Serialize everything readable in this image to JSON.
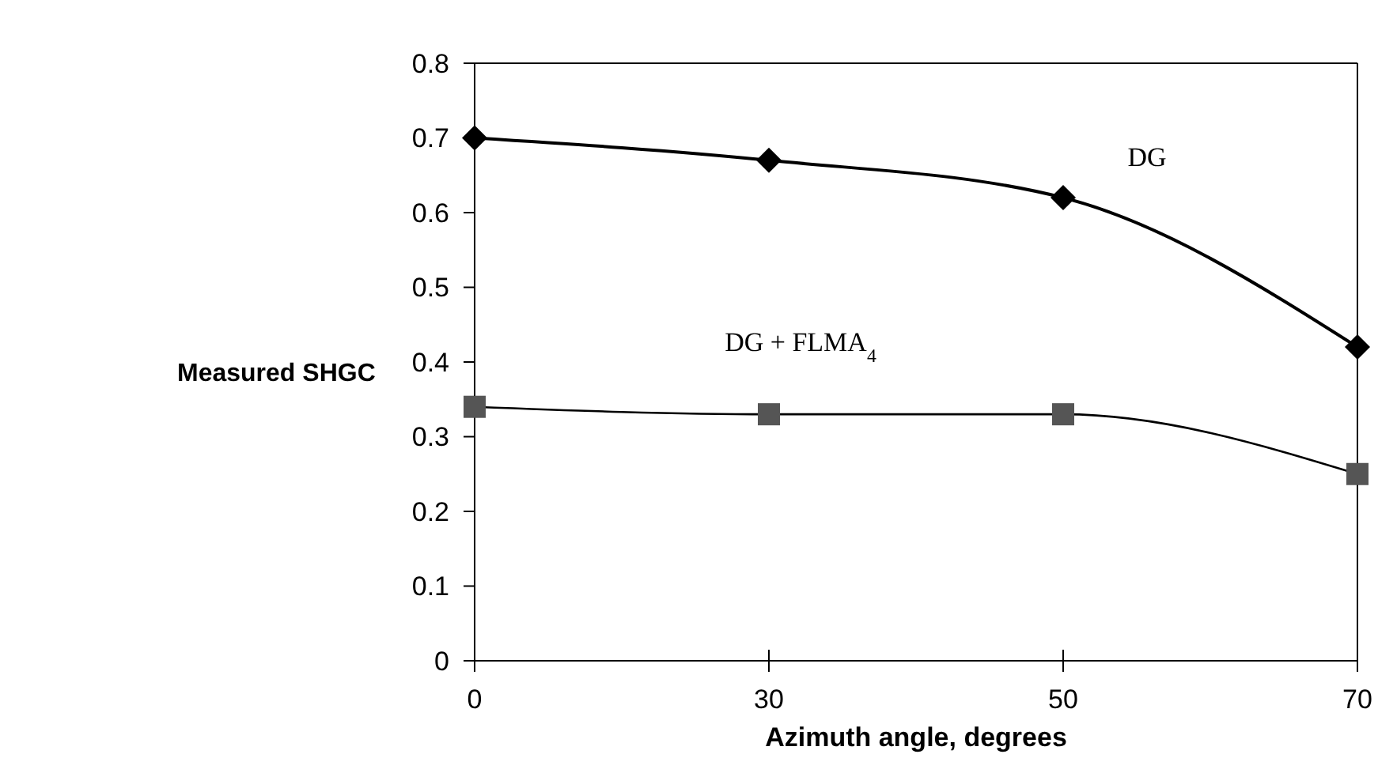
{
  "chart_data": {
    "type": "line",
    "xlabel": "Azimuth angle, degrees",
    "ylabel": "Measured SHGC",
    "categories": [
      "0",
      "30",
      "50",
      "70"
    ],
    "ylim": [
      0,
      0.8
    ],
    "yticks": [
      0,
      0.1,
      0.2,
      0.3,
      0.4,
      0.5,
      0.6,
      0.7,
      0.8
    ],
    "grid": false,
    "series": [
      {
        "name": "DG",
        "color": "#000000",
        "marker": "diamond",
        "values": [
          0.7,
          0.67,
          0.62,
          0.42
        ]
      },
      {
        "name": "DG + FLMA$_{4}$",
        "color": "#555555",
        "marker": "square",
        "values": [
          0.34,
          0.33,
          0.33,
          0.25
        ]
      }
    ]
  }
}
